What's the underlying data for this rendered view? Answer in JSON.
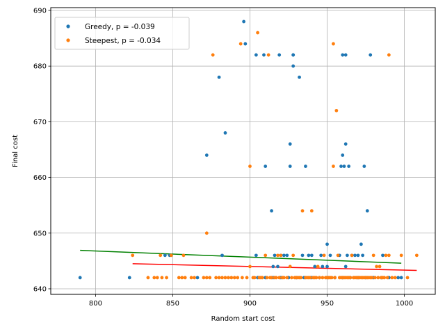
{
  "chart_data": {
    "type": "scatter",
    "xlabel": "Random start cost",
    "ylabel": "Final cost",
    "xlim": [
      771,
      1020
    ],
    "ylim": [
      639,
      690.5
    ],
    "x_ticks": [
      800,
      850,
      900,
      950,
      1000
    ],
    "y_ticks": [
      640,
      650,
      660,
      670,
      680,
      690
    ],
    "x_tick_labels": [
      "800",
      "850",
      "900",
      "950",
      "1000"
    ],
    "y_tick_labels": [
      "640",
      "650",
      "660",
      "670",
      "680",
      "690"
    ],
    "grid": true,
    "legend_position": "top-left",
    "colors": {
      "greedy": "#1f77b4",
      "steepest": "#ff7f0e",
      "greedy_fit": "#008000",
      "steepest_fit": "#ff0000"
    },
    "series": [
      {
        "name": "Greedy, p = -0.039",
        "color": "#1f77b4",
        "points": [
          [
            790,
            642
          ],
          [
            822,
            642
          ],
          [
            845,
            646
          ],
          [
            848,
            646
          ],
          [
            866,
            642
          ],
          [
            872,
            664
          ],
          [
            880,
            678
          ],
          [
            882,
            646
          ],
          [
            884,
            668
          ],
          [
            896,
            688
          ],
          [
            897,
            684
          ],
          [
            904,
            682
          ],
          [
            904,
            646
          ],
          [
            909,
            682
          ],
          [
            910,
            662
          ],
          [
            914,
            654
          ],
          [
            915,
            644
          ],
          [
            916,
            646
          ],
          [
            918,
            644
          ],
          [
            919,
            682
          ],
          [
            920,
            646
          ],
          [
            922,
            646
          ],
          [
            924,
            646
          ],
          [
            926,
            666
          ],
          [
            926,
            662
          ],
          [
            928,
            682
          ],
          [
            928,
            680
          ],
          [
            928,
            682
          ],
          [
            932,
            678
          ],
          [
            934,
            646
          ],
          [
            936,
            662
          ],
          [
            938,
            646
          ],
          [
            940,
            646
          ],
          [
            942,
            644
          ],
          [
            946,
            646
          ],
          [
            947,
            644
          ],
          [
            950,
            648
          ],
          [
            950,
            644
          ],
          [
            952,
            646
          ],
          [
            958,
            646
          ],
          [
            959,
            662
          ],
          [
            960,
            682
          ],
          [
            960,
            664
          ],
          [
            961,
            662
          ],
          [
            962,
            682
          ],
          [
            962,
            666
          ],
          [
            962,
            644
          ],
          [
            963,
            646
          ],
          [
            964,
            662
          ],
          [
            966,
            646
          ],
          [
            968,
            646
          ],
          [
            970,
            646
          ],
          [
            972,
            648
          ],
          [
            973,
            646
          ],
          [
            974,
            662
          ],
          [
            976,
            654
          ],
          [
            978,
            682
          ],
          [
            986,
            646
          ],
          [
            996,
            642
          ],
          [
            998,
            642
          ],
          [
            905,
            642
          ],
          [
            910,
            642
          ],
          [
            915,
            642
          ],
          [
            920,
            642
          ],
          [
            925,
            642
          ],
          [
            930,
            642
          ],
          [
            935,
            642
          ],
          [
            940,
            642
          ],
          [
            945,
            642
          ],
          [
            950,
            642
          ],
          [
            955,
            642
          ],
          [
            960,
            642
          ],
          [
            965,
            642
          ],
          [
            970,
            642
          ],
          [
            975,
            642
          ],
          [
            980,
            642
          ],
          [
            985,
            642
          ],
          [
            990,
            642
          ]
        ]
      },
      {
        "name": "Steepest, p = -0.034",
        "color": "#ff7f0e",
        "points": [
          [
            824,
            646
          ],
          [
            834,
            642
          ],
          [
            838,
            642
          ],
          [
            840,
            642
          ],
          [
            842,
            646
          ],
          [
            843,
            642
          ],
          [
            846,
            642
          ],
          [
            849,
            646
          ],
          [
            854,
            642
          ],
          [
            856,
            642
          ],
          [
            857,
            646
          ],
          [
            858,
            642
          ],
          [
            862,
            642
          ],
          [
            864,
            642
          ],
          [
            870,
            642
          ],
          [
            872,
            650
          ],
          [
            872,
            642
          ],
          [
            874,
            642
          ],
          [
            876,
            682
          ],
          [
            878,
            642
          ],
          [
            880,
            642
          ],
          [
            882,
            642
          ],
          [
            884,
            642
          ],
          [
            886,
            642
          ],
          [
            888,
            642
          ],
          [
            890,
            642
          ],
          [
            892,
            642
          ],
          [
            894,
            684
          ],
          [
            895,
            642
          ],
          [
            898,
            642
          ],
          [
            900,
            662
          ],
          [
            900,
            644
          ],
          [
            902,
            642
          ],
          [
            905,
            686
          ],
          [
            906,
            642
          ],
          [
            908,
            642
          ],
          [
            910,
            646
          ],
          [
            912,
            682
          ],
          [
            914,
            642
          ],
          [
            916,
            642
          ],
          [
            918,
            646
          ],
          [
            920,
            646
          ],
          [
            922,
            642
          ],
          [
            924,
            642
          ],
          [
            926,
            644
          ],
          [
            928,
            646
          ],
          [
            930,
            642
          ],
          [
            932,
            642
          ],
          [
            934,
            654
          ],
          [
            936,
            642
          ],
          [
            938,
            642
          ],
          [
            940,
            654
          ],
          [
            942,
            642
          ],
          [
            944,
            644
          ],
          [
            945,
            642
          ],
          [
            948,
            646
          ],
          [
            950,
            642
          ],
          [
            952,
            642
          ],
          [
            954,
            684
          ],
          [
            954,
            662
          ],
          [
            956,
            672
          ],
          [
            957,
            646
          ],
          [
            958,
            642
          ],
          [
            960,
            642
          ],
          [
            962,
            642
          ],
          [
            964,
            642
          ],
          [
            966,
            646
          ],
          [
            968,
            642
          ],
          [
            970,
            642
          ],
          [
            972,
            642
          ],
          [
            974,
            642
          ],
          [
            976,
            642
          ],
          [
            978,
            642
          ],
          [
            980,
            646
          ],
          [
            982,
            644
          ],
          [
            984,
            644
          ],
          [
            986,
            642
          ],
          [
            988,
            646
          ],
          [
            990,
            682
          ],
          [
            990,
            646
          ],
          [
            992,
            642
          ],
          [
            994,
            642
          ],
          [
            998,
            646
          ],
          [
            1002,
            642
          ],
          [
            1008,
            646
          ],
          [
            903,
            642
          ],
          [
            907,
            642
          ],
          [
            911,
            642
          ],
          [
            913,
            642
          ],
          [
            917,
            642
          ],
          [
            919,
            642
          ],
          [
            921,
            642
          ],
          [
            927,
            642
          ],
          [
            929,
            642
          ],
          [
            931,
            642
          ],
          [
            933,
            642
          ],
          [
            937,
            642
          ],
          [
            939,
            642
          ],
          [
            941,
            642
          ],
          [
            943,
            642
          ],
          [
            947,
            642
          ],
          [
            949,
            642
          ],
          [
            951,
            642
          ],
          [
            953,
            642
          ],
          [
            955,
            642
          ],
          [
            959,
            642
          ],
          [
            961,
            642
          ],
          [
            963,
            642
          ],
          [
            965,
            642
          ],
          [
            967,
            642
          ],
          [
            969,
            642
          ],
          [
            971,
            642
          ],
          [
            973,
            642
          ],
          [
            975,
            642
          ],
          [
            977,
            642
          ],
          [
            979,
            642
          ],
          [
            981,
            642
          ],
          [
            983,
            642
          ],
          [
            985,
            642
          ],
          [
            987,
            642
          ],
          [
            989,
            642
          ]
        ]
      }
    ],
    "fit_lines": [
      {
        "series": "Greedy",
        "color": "#008000",
        "x": [
          790,
          998
        ],
        "y": [
          646.9,
          644.6
        ]
      },
      {
        "series": "Steepest",
        "color": "#ff0000",
        "x": [
          824,
          1008
        ],
        "y": [
          644.5,
          643.3
        ]
      }
    ]
  }
}
